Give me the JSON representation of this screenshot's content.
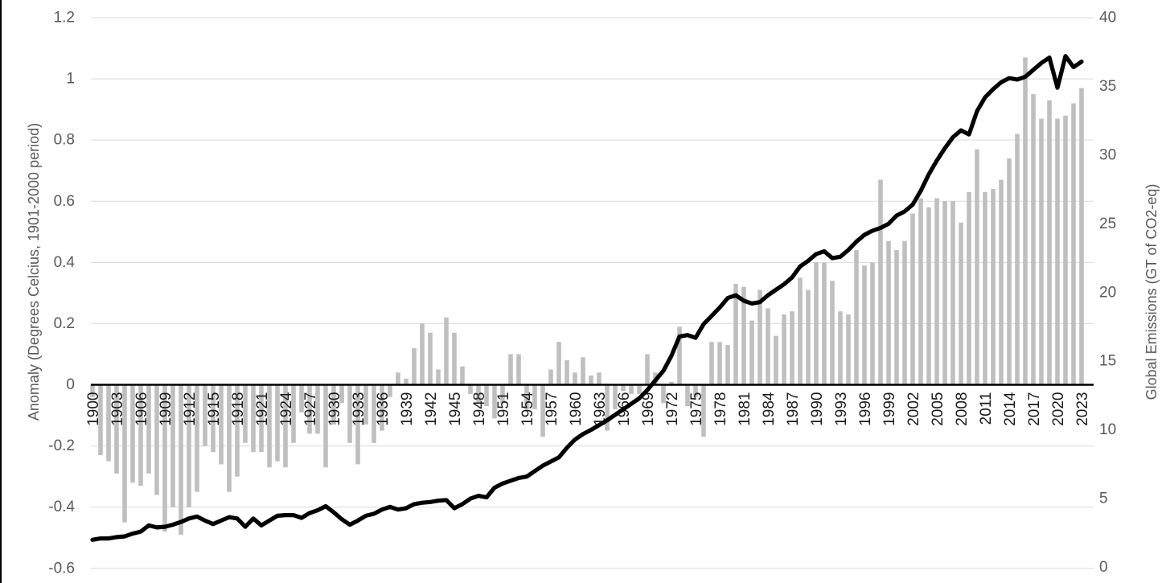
{
  "colors": {
    "background": "#ffffff",
    "gridline": "#d9d9d9",
    "axis_line": "#000000",
    "bar": "#bfbfbf",
    "line": "#000000",
    "tick_label": "#595959",
    "year_label": "#1a1a1a",
    "left_border": "#000000"
  },
  "chart_data": {
    "type": "combo",
    "title": "",
    "grid": true,
    "legend": "none",
    "x": {
      "start": 1900,
      "end": 2023,
      "label_step": 3
    },
    "left_axis": {
      "title": "Anomaly (Degrees Celcius, 1901-2000 period)",
      "min": -0.6,
      "max": 1.2,
      "ticks": [
        "1.2",
        "1",
        "0.8",
        "0.6",
        "0.4",
        "0.2",
        "0",
        "-0.2",
        "-0.4",
        "-0.6"
      ]
    },
    "right_axis": {
      "title": "Global Emissions (GT of CO2-eq)",
      "min": 0,
      "max": 40,
      "ticks": [
        "40",
        "35",
        "30",
        "25",
        "20",
        "15",
        "10",
        "5",
        "0"
      ]
    },
    "series": [
      {
        "name": "temperature-anomaly",
        "type": "bar",
        "axis": "left",
        "color": "#bfbfbf",
        "values": [
          -0.04,
          -0.23,
          -0.25,
          -0.29,
          -0.45,
          -0.32,
          -0.33,
          -0.29,
          -0.36,
          -0.48,
          -0.4,
          -0.49,
          -0.4,
          -0.35,
          -0.2,
          -0.22,
          -0.26,
          -0.35,
          -0.3,
          -0.19,
          -0.22,
          -0.22,
          -0.27,
          -0.25,
          -0.27,
          -0.19,
          -0.09,
          -0.16,
          -0.16,
          -0.27,
          -0.13,
          -0.06,
          -0.19,
          -0.26,
          -0.13,
          -0.19,
          -0.15,
          -0.04,
          0.04,
          0.02,
          0.12,
          0.2,
          0.17,
          0.05,
          0.22,
          0.17,
          0.06,
          -0.03,
          -0.06,
          -0.07,
          -0.11,
          -0.06,
          0.1,
          0.1,
          -0.08,
          -0.08,
          -0.17,
          0.05,
          0.14,
          0.08,
          0.04,
          0.09,
          0.03,
          0.04,
          -0.15,
          -0.08,
          -0.02,
          -0.03,
          -0.03,
          0.1,
          0.04,
          -0.06,
          0.01,
          0.19,
          -0.07,
          -0.04,
          -0.17,
          0.14,
          0.14,
          0.13,
          0.33,
          0.32,
          0.21,
          0.31,
          0.25,
          0.16,
          0.23,
          0.24,
          0.35,
          0.31,
          0.4,
          0.4,
          0.34,
          0.24,
          0.23,
          0.44,
          0.39,
          0.4,
          0.67,
          0.47,
          0.44,
          0.47,
          0.56,
          0.61,
          0.58,
          0.61,
          0.6,
          0.6,
          0.53,
          0.63,
          0.77,
          0.63,
          0.64,
          0.67,
          0.74,
          0.82,
          1.07,
          0.95,
          0.87,
          0.93,
          0.87,
          0.88,
          0.92,
          0.97
        ]
      },
      {
        "name": "global-emissions",
        "type": "line",
        "axis": "right",
        "color": "#000000",
        "values": [
          2.0,
          2.1,
          2.1,
          2.2,
          2.25,
          2.45,
          2.6,
          3.05,
          2.9,
          2.95,
          3.1,
          3.3,
          3.55,
          3.7,
          3.4,
          3.15,
          3.4,
          3.65,
          3.55,
          2.95,
          3.55,
          3.05,
          3.4,
          3.75,
          3.8,
          3.8,
          3.6,
          3.95,
          4.15,
          4.45,
          4.0,
          3.5,
          3.1,
          3.4,
          3.75,
          3.9,
          4.2,
          4.4,
          4.2,
          4.3,
          4.6,
          4.7,
          4.75,
          4.85,
          4.9,
          4.3,
          4.6,
          5.0,
          5.2,
          5.1,
          5.8,
          6.1,
          6.3,
          6.5,
          6.6,
          7.0,
          7.4,
          7.7,
          8.0,
          8.7,
          9.3,
          9.7,
          10.0,
          10.35,
          10.7,
          11.1,
          11.5,
          11.9,
          12.3,
          12.9,
          13.6,
          14.3,
          15.4,
          16.8,
          16.9,
          16.7,
          17.7,
          18.3,
          18.9,
          19.6,
          19.8,
          19.4,
          19.2,
          19.3,
          19.8,
          20.2,
          20.6,
          21.1,
          21.9,
          22.3,
          22.8,
          23.0,
          22.5,
          22.6,
          23.1,
          23.7,
          24.2,
          24.5,
          24.7,
          25.0,
          25.6,
          25.9,
          26.4,
          27.4,
          28.6,
          29.6,
          30.5,
          31.3,
          31.8,
          31.5,
          33.2,
          34.2,
          34.8,
          35.3,
          35.6,
          35.5,
          35.7,
          36.2,
          36.7,
          37.1,
          34.9,
          37.2,
          36.4,
          36.8
        ]
      }
    ]
  }
}
